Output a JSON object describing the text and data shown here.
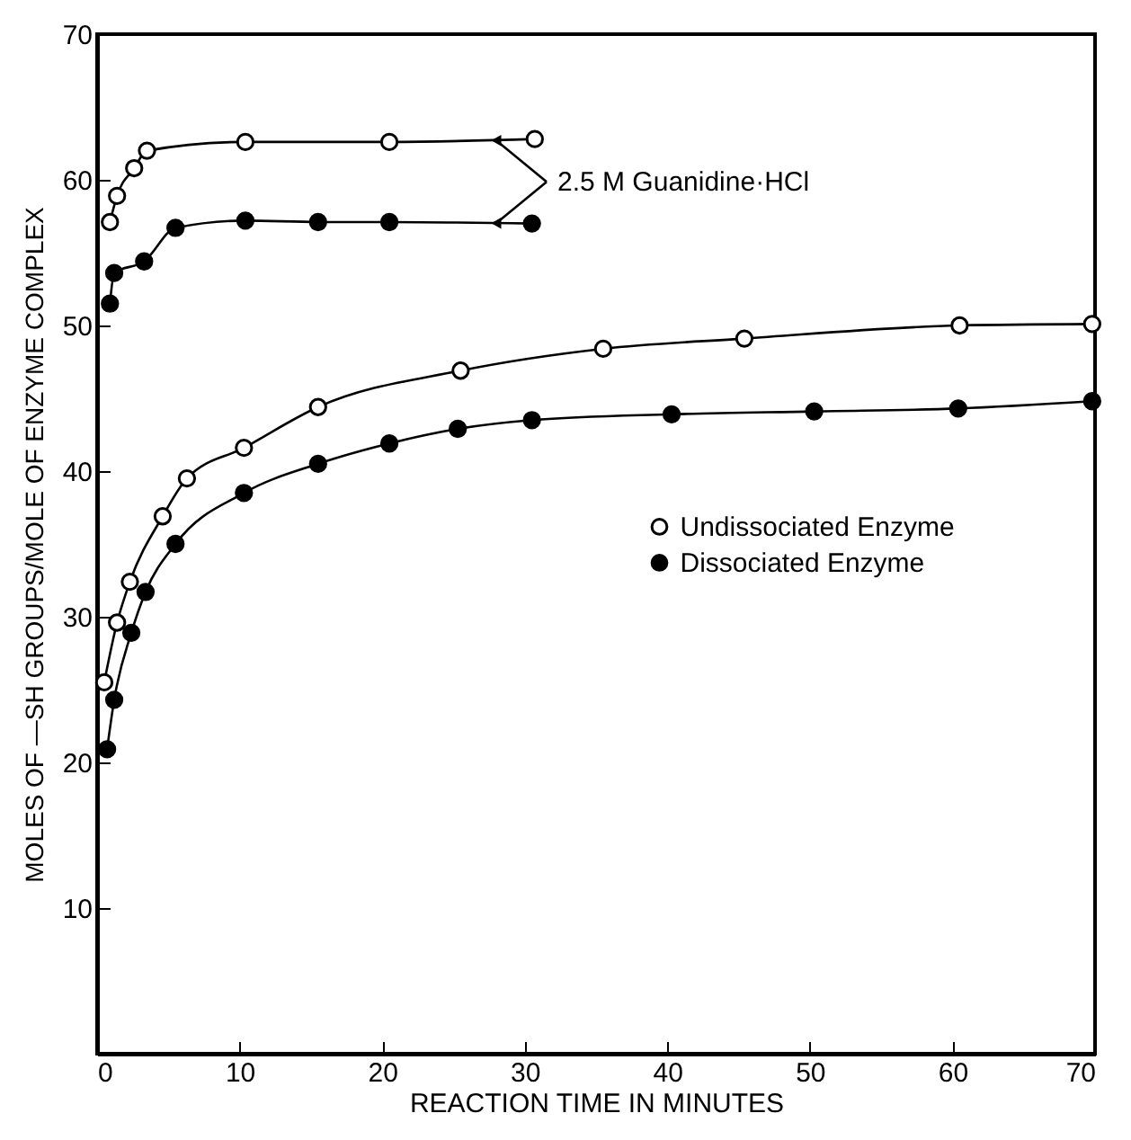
{
  "chart_data": {
    "type": "line",
    "xlabel": "REACTION TIME IN MINUTES",
    "ylabel": "MOLES OF —SH GROUPS/MOLE OF ENZYME COMPLEX",
    "xlim": [
      0,
      70
    ],
    "ylim": [
      0,
      70
    ],
    "xticks": [
      0,
      10,
      20,
      30,
      40,
      50,
      60,
      70
    ],
    "yticks": [
      10,
      20,
      30,
      40,
      50,
      60,
      70
    ],
    "grid": false,
    "legend": "right",
    "marker": "circle",
    "line_style": "solid",
    "annotations": [
      {
        "text": "2.5 M Guanidine·HCl",
        "x": 28,
        "y": 62.7
      }
    ],
    "series": [
      {
        "color": "#000000",
        "marker": "circle-open",
        "x": [
          0.9,
          1.4,
          2.6,
          3.5,
          10.4,
          20.5,
          30.7
        ],
        "values": [
          57.1,
          58.9,
          60.8,
          62.0,
          62.6,
          62.6,
          62.8
        ]
      },
      {
        "color": "#000000",
        "marker": "circle",
        "x": [
          0.9,
          1.2,
          3.3,
          5.5,
          10.4,
          15.5,
          20.5,
          30.5
        ],
        "values": [
          51.5,
          53.6,
          54.4,
          56.7,
          57.2,
          57.1,
          57.1,
          57.0
        ]
      },
      {
        "name": "Undissociated Enzyme",
        "color": "#000000",
        "marker": "circle-open",
        "x": [
          0.5,
          1.4,
          2.3,
          4.6,
          6.3,
          10.3,
          15.5,
          25.5,
          35.5,
          45.4,
          60.5,
          69.8
        ],
        "values": [
          25.5,
          29.6,
          32.4,
          36.9,
          39.5,
          41.6,
          44.4,
          46.9,
          48.4,
          49.1,
          50.0,
          50.1
        ]
      },
      {
        "name": "Dissociated Enzyme",
        "color": "#000000",
        "marker": "circle",
        "x": [
          0.7,
          1.2,
          2.4,
          3.4,
          5.5,
          10.3,
          15.5,
          20.5,
          25.3,
          30.5,
          40.3,
          50.3,
          60.4,
          69.8
        ],
        "values": [
          20.9,
          24.3,
          28.9,
          31.7,
          35.0,
          38.5,
          40.5,
          41.9,
          42.9,
          43.5,
          43.9,
          44.1,
          44.3,
          44.8
        ]
      }
    ]
  }
}
